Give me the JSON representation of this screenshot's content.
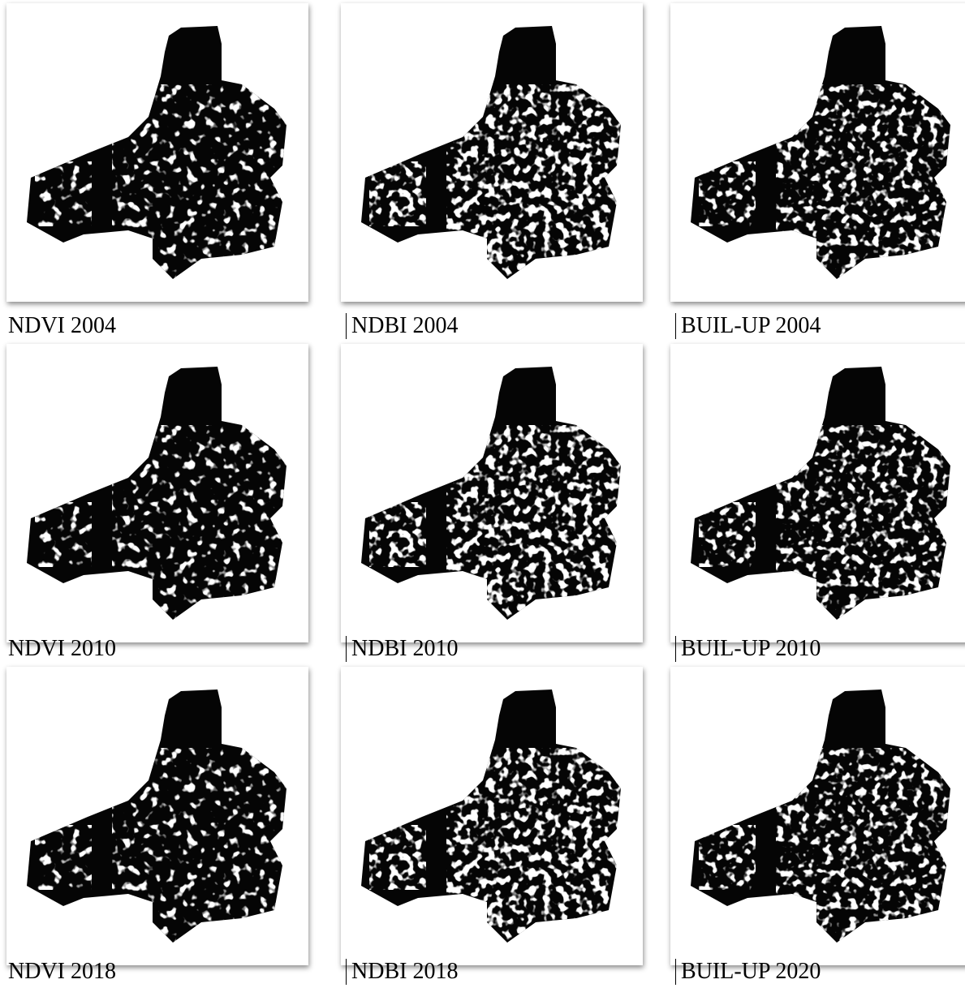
{
  "panels": [
    {
      "caption": "NDVI 2004"
    },
    {
      "caption": "NDBI 2004"
    },
    {
      "caption": "BUIL-UP 2004"
    },
    {
      "caption": "NDVI 2010"
    },
    {
      "caption": "NDBI 2010"
    },
    {
      "caption": "BUIL-UP 2010"
    },
    {
      "caption": "NDVI 2018"
    },
    {
      "caption": "NDBI 2018"
    },
    {
      "caption": "BUIL-UP 2020"
    }
  ]
}
